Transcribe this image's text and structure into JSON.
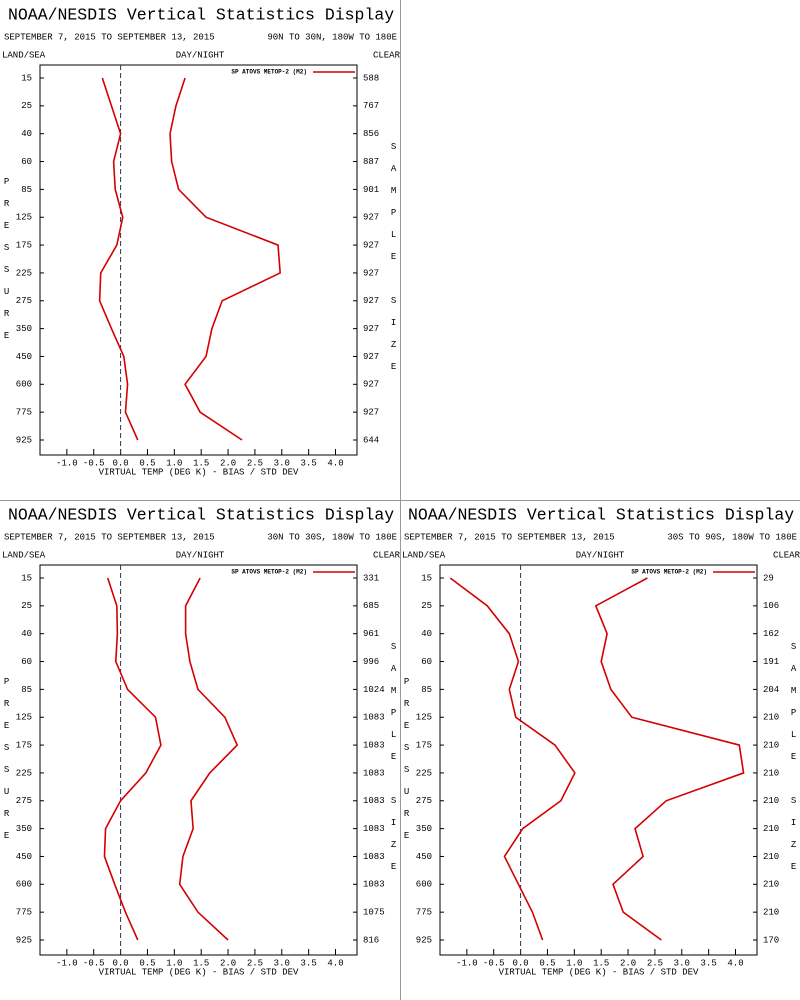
{
  "chart_data": [
    {
      "type": "line",
      "title": "NOAA/NESDIS Vertical Statistics Display",
      "subtitle": "SEPTEMBER 7, 2015 TO SEPTEMBER 13, 2015",
      "region": "90N TO 30N, 180W TO 180E",
      "land_sea": "LAND/SEA",
      "day_night": "DAY/NIGHT",
      "clear": "CLEAR",
      "y_label": "PRESSURE",
      "y2_label": "SAMPLE SIZE",
      "x_label": "VIRTUAL TEMP (DEG K) - BIAS / STD DEV",
      "legend": "SP ATOVS METOP-2 (M2)",
      "color": "#d40000",
      "categories": [
        15,
        25,
        40,
        60,
        85,
        125,
        175,
        225,
        275,
        350,
        450,
        600,
        775,
        925
      ],
      "sample_size": [
        588,
        767,
        856,
        887,
        901,
        927,
        927,
        927,
        927,
        927,
        927,
        927,
        927,
        644
      ],
      "series": [
        {
          "values": [
            -0.34,
            -0.17,
            0.0,
            -0.13,
            -0.1,
            0.04,
            -0.07,
            -0.37,
            -0.39,
            -0.17,
            0.06,
            0.13,
            0.09,
            0.32
          ]
        },
        {
          "values": [
            1.2,
            1.03,
            0.92,
            0.95,
            1.08,
            1.59,
            2.93,
            2.97,
            1.89,
            1.7,
            1.59,
            1.2,
            1.48,
            2.26
          ]
        }
      ],
      "xlim": [
        -1.5,
        4.4
      ],
      "xticks": [
        {
          "value": -1,
          "label": "-1.0"
        },
        -0.5,
        {
          "value": 0,
          "label": "0.0"
        },
        0.5,
        {
          "value": 1,
          "label": "1.0"
        },
        1.5,
        {
          "value": 2,
          "label": "2.0"
        },
        2.5,
        {
          "value": 3,
          "label": "3.0"
        },
        3.5,
        {
          "value": 4,
          "label": "4.0"
        }
      ]
    },
    {
      "type": "line",
      "title": "NOAA/NESDIS Vertical Statistics Display",
      "subtitle": "SEPTEMBER 7, 2015 TO SEPTEMBER 13, 2015",
      "region": "30N TO 30S, 180W TO 180E",
      "land_sea": "LAND/SEA",
      "day_night": "DAY/NIGHT",
      "clear": "CLEAR",
      "y_label": "PRESSURE",
      "y2_label": "SAMPLE SIZE",
      "x_label": "VIRTUAL TEMP (DEG K) - BIAS / STD DEV",
      "legend": "SP ATOVS METOP-2 (M2)",
      "color": "#d40000",
      "categories": [
        15,
        25,
        40,
        60,
        85,
        125,
        175,
        225,
        275,
        350,
        450,
        600,
        775,
        925
      ],
      "sample_size": [
        331,
        685,
        961,
        996,
        1024,
        1083,
        1083,
        1083,
        1083,
        1083,
        1083,
        1083,
        1075,
        816
      ],
      "series": [
        {
          "values": [
            -0.24,
            -0.07,
            -0.06,
            -0.09,
            0.13,
            0.65,
            0.75,
            0.47,
            0.0,
            -0.28,
            -0.3,
            -0.11,
            0.09,
            0.32
          ]
        },
        {
          "values": [
            1.48,
            1.21,
            1.21,
            1.29,
            1.44,
            1.94,
            2.17,
            1.66,
            1.31,
            1.35,
            1.16,
            1.1,
            1.44,
            2.0
          ]
        }
      ],
      "xlim": [
        -1.5,
        4.4
      ],
      "xticks": [
        {
          "value": -1,
          "label": "-1.0"
        },
        -0.5,
        {
          "value": 0,
          "label": "0.0"
        },
        0.5,
        {
          "value": 1,
          "label": "1.0"
        },
        1.5,
        {
          "value": 2,
          "label": "2.0"
        },
        2.5,
        {
          "value": 3,
          "label": "3.0"
        },
        3.5,
        {
          "value": 4,
          "label": "4.0"
        }
      ]
    },
    {
      "type": "line",
      "title": "NOAA/NESDIS Vertical Statistics Display",
      "subtitle": "SEPTEMBER 7, 2015 TO SEPTEMBER 13, 2015",
      "region": "30S TO 90S, 180W TO 180E",
      "land_sea": "LAND/SEA",
      "day_night": "DAY/NIGHT",
      "clear": "CLEAR",
      "y_label": "PRESSURE",
      "y2_label": "SAMPLE SIZE",
      "x_label": "VIRTUAL TEMP (DEG K) - BIAS / STD DEV",
      "legend": "SP ATOVS METOP-2 (M2)",
      "color": "#d40000",
      "categories": [
        15,
        25,
        40,
        60,
        85,
        125,
        175,
        225,
        275,
        350,
        450,
        600,
        775,
        925
      ],
      "sample_size": [
        29,
        106,
        162,
        191,
        204,
        210,
        210,
        210,
        210,
        210,
        210,
        210,
        210,
        170
      ],
      "series": [
        {
          "values": [
            -1.31,
            -0.62,
            -0.21,
            -0.04,
            -0.21,
            -0.09,
            0.64,
            1.01,
            0.75,
            0.04,
            -0.3,
            -0.04,
            0.22,
            0.41
          ]
        },
        {
          "values": [
            2.36,
            1.4,
            1.61,
            1.5,
            1.68,
            2.07,
            4.07,
            4.15,
            2.71,
            2.13,
            2.28,
            1.72,
            1.91,
            2.62
          ]
        }
      ],
      "xlim": [
        -1.5,
        4.4
      ],
      "xticks": [
        {
          "value": -1,
          "label": "-1.0"
        },
        -0.5,
        {
          "value": 0,
          "label": "0.0"
        },
        0.5,
        {
          "value": 1,
          "label": "1.0"
        },
        1.5,
        {
          "value": 2,
          "label": "2.0"
        },
        2.5,
        {
          "value": 3,
          "label": "3.0"
        },
        3.5,
        {
          "value": 4,
          "label": "4.0"
        }
      ]
    }
  ]
}
